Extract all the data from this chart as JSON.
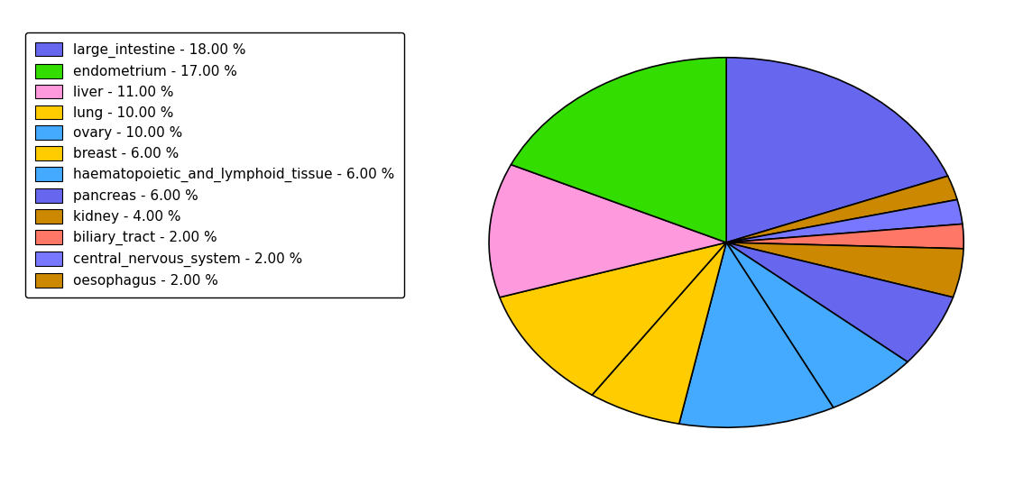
{
  "labels": [
    "large_intestine",
    "oesophagus",
    "central_nervous_system",
    "biliary_tract",
    "kidney",
    "pancreas",
    "haematopoietic_and_lymphoid_tissue",
    "ovary",
    "breast",
    "lung",
    "liver",
    "endometrium"
  ],
  "values": [
    18.0,
    2.0,
    2.0,
    2.0,
    4.0,
    6.0,
    6.0,
    10.0,
    6.0,
    10.0,
    11.0,
    17.0
  ],
  "colors": [
    "#6666ee",
    "#cc8800",
    "#7777ff",
    "#ff7766",
    "#cc8800",
    "#6666ee",
    "#44aaff",
    "#44aaff",
    "#ffcc00",
    "#ffcc00",
    "#ff99dd",
    "#33dd00"
  ],
  "legend_labels": [
    "large_intestine - 18.00 %",
    "endometrium - 17.00 %",
    "liver - 11.00 %",
    "lung - 10.00 %",
    "ovary - 10.00 %",
    "breast - 6.00 %",
    "haematopoietic_and_lymphoid_tissue - 6.00 %",
    "pancreas - 6.00 %",
    "kidney - 4.00 %",
    "biliary_tract - 2.00 %",
    "central_nervous_system - 2.00 %",
    "oesophagus - 2.00 %"
  ],
  "legend_colors": [
    "#6666ee",
    "#33dd00",
    "#ff99dd",
    "#ffcc00",
    "#44aaff",
    "#ffcc00",
    "#44aaff",
    "#6666ee",
    "#cc8800",
    "#ff7766",
    "#7777ff",
    "#cc8800"
  ],
  "startangle": 90,
  "figsize": [
    11.34,
    5.38
  ],
  "dpi": 100
}
